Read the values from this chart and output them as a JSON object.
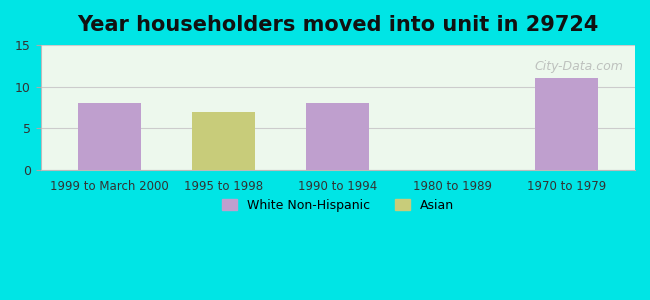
{
  "title": "Year householders moved into unit in 29724",
  "categories": [
    "1999 to March 2000",
    "1995 to 1998",
    "1990 to 1994",
    "1980 to 1989",
    "1970 to 1979"
  ],
  "white_values": [
    8,
    0,
    8,
    0,
    11
  ],
  "asian_values": [
    0,
    7,
    0,
    0,
    0
  ],
  "white_color": "#bf9fce",
  "asian_color": "#c8cc7a",
  "ylim": [
    0,
    15
  ],
  "yticks": [
    0,
    5,
    10,
    15
  ],
  "bar_width": 0.55,
  "bg_outer": "#00e5e5",
  "title_fontsize": 15,
  "watermark": "City-Data.com",
  "legend_labels": [
    "White Non-Hispanic",
    "Asian"
  ]
}
